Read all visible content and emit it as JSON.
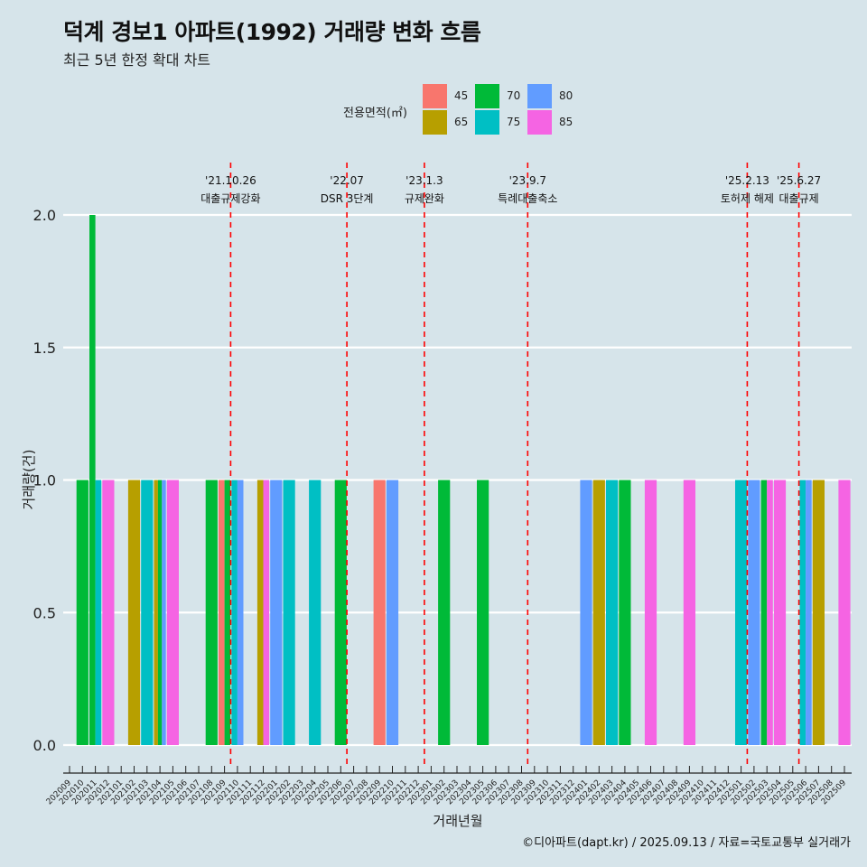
{
  "title": "덕계 경보1 아파트(1992) 거래량 변화 흐름",
  "subtitle": "최근 5년 한정 확대 차트",
  "footer": "©디아파트(dapt.kr) / 2025.09.13 / 자료=국토교통부 실거래가",
  "legend": {
    "title": "전용면적(㎡)",
    "items": [
      {
        "label": "45",
        "color": "#F8766D"
      },
      {
        "label": "65",
        "color": "#B79F00"
      },
      {
        "label": "70",
        "color": "#00BA38"
      },
      {
        "label": "75",
        "color": "#00BFC4"
      },
      {
        "label": "80",
        "color": "#619CFF"
      },
      {
        "label": "85",
        "color": "#F564E3"
      }
    ]
  },
  "chart_data": {
    "type": "bar",
    "xlabel": "거래년월",
    "ylabel": "거래량(건)",
    "ylim": [
      0,
      2
    ],
    "yticks": [
      "0.0",
      "0.5",
      "1.0",
      "1.5",
      "2.0"
    ],
    "categories": [
      "202009",
      "202010",
      "202011",
      "202012",
      "202101",
      "202102",
      "202103",
      "202104",
      "202105",
      "202106",
      "202107",
      "202108",
      "202109",
      "202110",
      "202111",
      "202112",
      "202201",
      "202202",
      "202203",
      "202204",
      "202205",
      "202206",
      "202207",
      "202208",
      "202209",
      "202210",
      "202211",
      "202212",
      "202301",
      "202302",
      "202303",
      "202304",
      "202305",
      "202306",
      "202307",
      "202308",
      "202309",
      "202310",
      "202311",
      "202312",
      "202401",
      "202402",
      "202403",
      "202404",
      "202405",
      "202406",
      "202407",
      "202408",
      "202409",
      "202410",
      "202411",
      "202412",
      "202501",
      "202502",
      "202503",
      "202504",
      "202505",
      "202506",
      "202507",
      "202508",
      "202509"
    ],
    "bars": [
      {
        "month": "202010",
        "area": "70",
        "value": 1
      },
      {
        "month": "202011",
        "area": "70",
        "value": 2
      },
      {
        "month": "202011",
        "area": "75",
        "value": 1
      },
      {
        "month": "202012",
        "area": "85",
        "value": 1
      },
      {
        "month": "202102",
        "area": "65",
        "value": 1
      },
      {
        "month": "202103",
        "area": "75",
        "value": 1
      },
      {
        "month": "202104",
        "area": "65",
        "value": 1
      },
      {
        "month": "202104",
        "area": "70",
        "value": 1
      },
      {
        "month": "202104",
        "area": "80",
        "value": 1
      },
      {
        "month": "202105",
        "area": "85",
        "value": 1
      },
      {
        "month": "202108",
        "area": "70",
        "value": 1
      },
      {
        "month": "202109",
        "area": "45",
        "value": 1
      },
      {
        "month": "202109",
        "area": "70",
        "value": 1
      },
      {
        "month": "202110",
        "area": "75",
        "value": 1
      },
      {
        "month": "202110",
        "area": "80",
        "value": 1
      },
      {
        "month": "202112",
        "area": "65",
        "value": 1
      },
      {
        "month": "202112",
        "area": "85",
        "value": 1
      },
      {
        "month": "202201",
        "area": "80",
        "value": 1
      },
      {
        "month": "202202",
        "area": "75",
        "value": 1
      },
      {
        "month": "202204",
        "area": "75",
        "value": 1
      },
      {
        "month": "202206",
        "area": "70",
        "value": 1
      },
      {
        "month": "202209",
        "area": "45",
        "value": 1
      },
      {
        "month": "202210",
        "area": "80",
        "value": 1
      },
      {
        "month": "202302",
        "area": "70",
        "value": 1
      },
      {
        "month": "202305",
        "area": "70",
        "value": 1
      },
      {
        "month": "202401",
        "area": "80",
        "value": 1
      },
      {
        "month": "202402",
        "area": "65",
        "value": 1
      },
      {
        "month": "202403",
        "area": "75",
        "value": 1
      },
      {
        "month": "202404",
        "area": "70",
        "value": 1
      },
      {
        "month": "202406",
        "area": "85",
        "value": 1
      },
      {
        "month": "202409",
        "area": "85",
        "value": 1
      },
      {
        "month": "202501",
        "area": "75",
        "value": 1
      },
      {
        "month": "202502",
        "area": "80",
        "value": 1
      },
      {
        "month": "202503",
        "area": "70",
        "value": 1
      },
      {
        "month": "202503",
        "area": "85",
        "value": 1
      },
      {
        "month": "202504",
        "area": "85",
        "value": 1
      },
      {
        "month": "202506",
        "area": "75",
        "value": 1
      },
      {
        "month": "202506",
        "area": "80",
        "value": 1
      },
      {
        "month": "202507",
        "area": "65",
        "value": 1
      },
      {
        "month": "202509",
        "area": "85",
        "value": 1
      }
    ],
    "events": [
      {
        "date_label": "'21.10.26",
        "desc": "대출규제강화",
        "month": "202110"
      },
      {
        "date_label": "'22.07",
        "desc": "DSR 3단계",
        "month": "202207"
      },
      {
        "date_label": "'23.1.3",
        "desc": "규제완화",
        "month": "202301"
      },
      {
        "date_label": "'23.9.7",
        "desc": "특례대출축소",
        "month": "202309"
      },
      {
        "date_label": "'25.2.13",
        "desc": "토허제 해제",
        "month": "202502"
      },
      {
        "date_label": "'25.6.27",
        "desc": "대출규제",
        "month": "202506"
      }
    ],
    "grid": true,
    "legend_position": "top"
  }
}
